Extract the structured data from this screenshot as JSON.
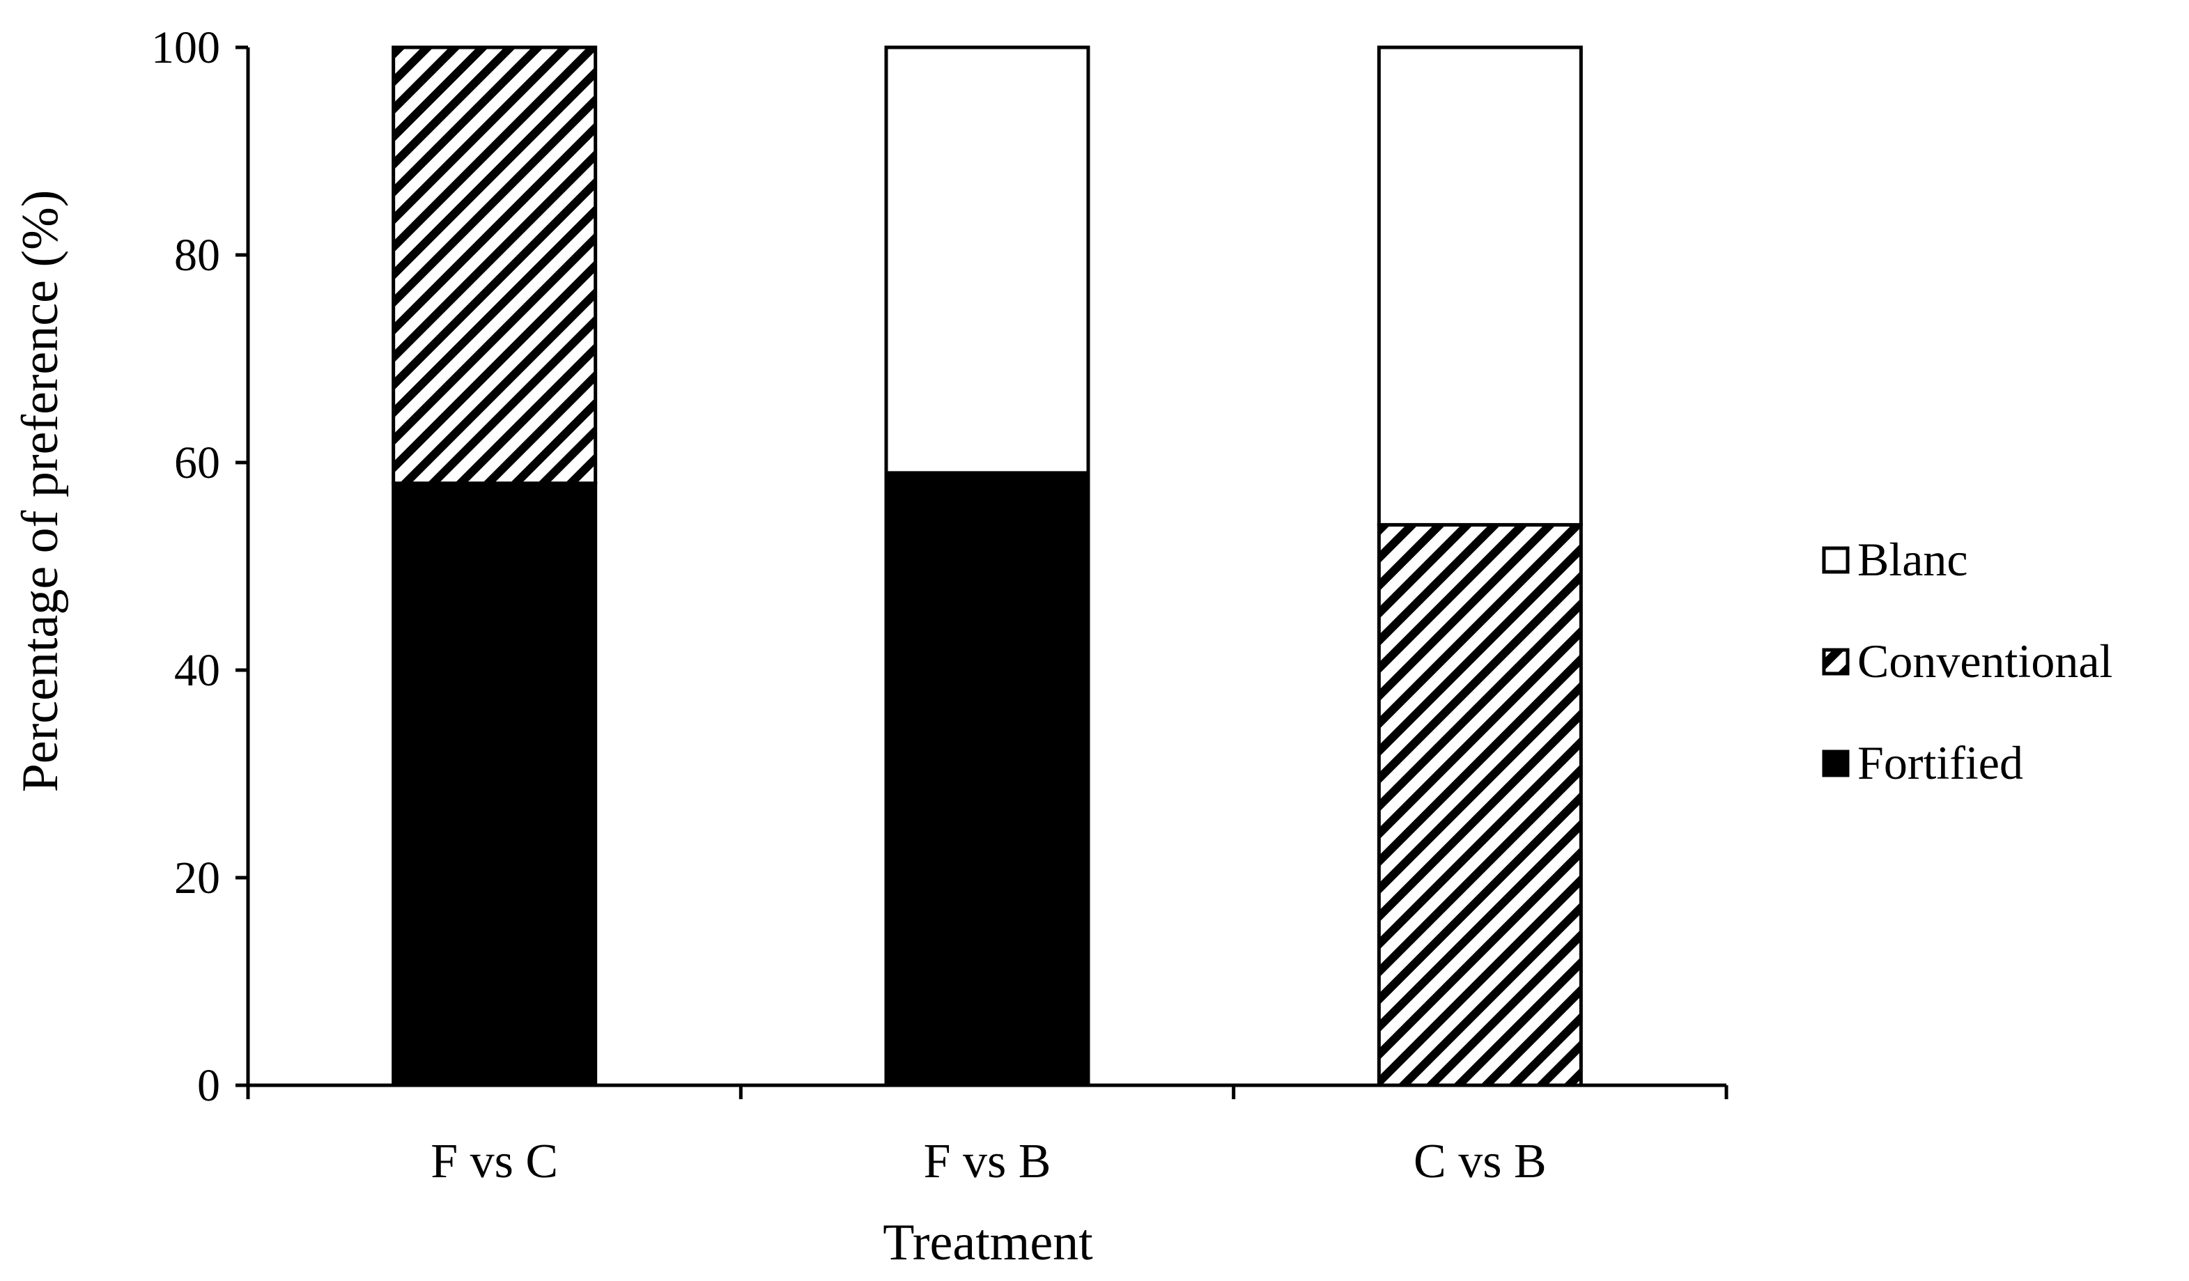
{
  "chart_data": {
    "type": "bar",
    "stacked": true,
    "title": "",
    "xlabel": "Treatment",
    "ylabel": "Percentage of preference (%)",
    "categories": [
      "F vs C",
      "F vs B",
      "C vs B"
    ],
    "ylim": [
      0,
      100
    ],
    "yticks": [
      0,
      20,
      40,
      60,
      80,
      100
    ],
    "grid": false,
    "legend_position": "right",
    "series": [
      {
        "name": "Fortified",
        "fill": "solid-black",
        "values": [
          58,
          59,
          0
        ]
      },
      {
        "name": "Conventional",
        "fill": "diagonal-hatch",
        "values": [
          42,
          0,
          54
        ]
      },
      {
        "name": "Blanc",
        "fill": "white",
        "values": [
          0,
          41,
          46
        ]
      }
    ],
    "legend_order": [
      "Blanc",
      "Conventional",
      "Fortified"
    ],
    "colors": {
      "solid": "#000000",
      "background": "#ffffff",
      "outline": "#000000"
    }
  }
}
